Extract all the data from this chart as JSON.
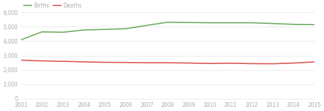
{
  "years": [
    2001,
    2002,
    2003,
    2004,
    2005,
    2006,
    2007,
    2008,
    2009,
    2010,
    2011,
    2012,
    2013,
    2014,
    2015
  ],
  "births": [
    4100,
    4650,
    4620,
    4780,
    4820,
    4870,
    5100,
    5320,
    5300,
    5280,
    5280,
    5280,
    5230,
    5170,
    5150
  ],
  "deaths": [
    2680,
    2630,
    2600,
    2560,
    2530,
    2520,
    2500,
    2500,
    2480,
    2450,
    2470,
    2440,
    2430,
    2480,
    2560
  ],
  "births_color": "#6aaa5e",
  "deaths_color": "#d9534f",
  "background_color": "#ffffff",
  "ylim": [
    0,
    6000
  ],
  "yticks": [
    0,
    1000,
    2000,
    3000,
    4000,
    5000,
    6000
  ],
  "legend_labels": [
    "Births",
    "Deaths"
  ],
  "line_width": 1.2,
  "grid_color": "#e8e8e8",
  "tick_label_color": "#aaaaaa",
  "tick_label_size": 5.5
}
